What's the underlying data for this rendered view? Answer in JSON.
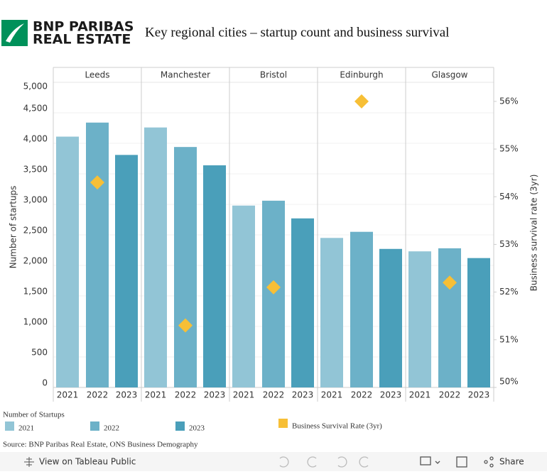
{
  "logo": [
    "BNP PARIBAS",
    "REAL ESTATE"
  ],
  "toolbar": {
    "view": "View on Tableau Public",
    "share": "Share"
  },
  "chart_data": {
    "type": "bar",
    "title": "Key regional cities – startup count and business survival",
    "y_label": "Number of startups",
    "y2_label": "Business survival rate (3yr)",
    "legend_title": "Number of Startups",
    "source": "Source: BNP Paribas Real Estate, ONS Business Demography",
    "categories": [
      "Leeds",
      "Manchester",
      "Bristol",
      "Edinburgh",
      "Glasgow"
    ],
    "series": [
      {
        "name": "2021",
        "color": "#92c5d6",
        "values": [
          4110,
          4260,
          2980,
          2450,
          2230
        ]
      },
      {
        "name": "2022",
        "color": "#6cb1c8",
        "values": [
          4340,
          3940,
          3060,
          2550,
          2280
        ]
      },
      {
        "name": "2023",
        "color": "#4a9fba",
        "values": [
          3810,
          3640,
          2770,
          2270,
          2120
        ]
      },
      {
        "name": "Business Survival Rate (3yr)",
        "color": "#f7bf36",
        "axis": "y2",
        "marker": "diamond",
        "values": [
          54.3,
          51.3,
          52.1,
          56.0,
          52.2
        ]
      }
    ],
    "ylim": [
      0,
      5000
    ],
    "yticks": [
      0,
      500,
      {
        "value": 1000,
        "label": "1,000"
      },
      {
        "value": 1500,
        "label": "1,500"
      },
      {
        "value": 2000,
        "label": "2,000"
      },
      {
        "value": 2500,
        "label": "2,500"
      },
      {
        "value": 3000,
        "label": "3,000"
      },
      {
        "value": 3500,
        "label": "3,500"
      },
      {
        "value": 4000,
        "label": "4,000"
      },
      {
        "value": 4500,
        "label": "4,500"
      },
      {
        "value": 5000,
        "label": "5,000"
      }
    ],
    "y2lim": [
      50,
      56.4
    ],
    "y2ticks": [
      {
        "value": 50,
        "label": "50%"
      },
      {
        "value": 51,
        "label": "51%"
      },
      {
        "value": 52,
        "label": "52%"
      },
      {
        "value": 53,
        "label": "53%"
      },
      {
        "value": 54,
        "label": "54%"
      },
      {
        "value": 55,
        "label": "55%"
      },
      {
        "value": 56,
        "label": "56%"
      }
    ],
    "grid": true
  }
}
